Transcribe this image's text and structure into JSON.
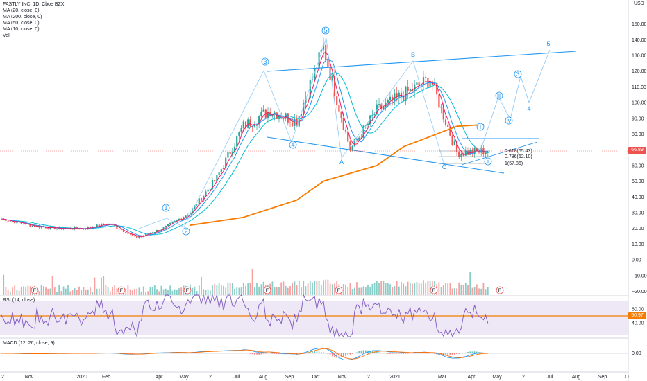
{
  "legend": {
    "symbol": "FASTLY INC, 1D, Cboe BZX",
    "ma20": "MA (20, close, 0)",
    "ma200": "MA (200, close, 0)",
    "ma50": "MA (50, close, 0)",
    "ma10": "MA (10, close, 0)",
    "vol": "Vol"
  },
  "rsi_label": "RSI (14, close)",
  "macd_label": "MACD (12, 26, close, 9)",
  "currency": "USD",
  "price_badge": "66.89",
  "rsi_badge": "50.97",
  "colors": {
    "up": "#26a69a",
    "down": "#ef5350",
    "ma20": "#e91e63",
    "ma200": "#f57c00",
    "ma50": "#00bcd4",
    "ma10": "#2196f3",
    "wave": "#2196f3",
    "rsi": "#7e57c2",
    "rsi_band": "#ede7f6",
    "macd": "#2196f3",
    "signal": "#ff6d00"
  },
  "chart_data": {
    "type": "line",
    "price_axis": [
      "150.00",
      "140.00",
      "130.00",
      "120.00",
      "110.00",
      "100.00",
      "90.00",
      "80.00",
      "70.00",
      "60.00",
      "50.00",
      "40.00",
      "30.00",
      "20.00",
      "10.00",
      "0.00",
      "−10.00",
      "−20.00"
    ],
    "rsi_axis": [
      "60.00",
      "40.00"
    ],
    "macd_axis": [
      "0.00"
    ],
    "time_axis": [
      "2",
      "Nov",
      "2020",
      "Feb",
      "Apr",
      "May",
      "2",
      "Jul",
      "Aug",
      "Sep",
      "Oct",
      "Nov",
      "2",
      "2021",
      "Mar",
      "Apr",
      "May",
      "2",
      "Jul",
      "Aug",
      "Sep",
      "O"
    ],
    "wave_labels": [
      "1",
      "2",
      "3",
      "4",
      "5",
      "A",
      "B",
      "C",
      "i",
      "ii",
      "iii",
      "iv",
      "3",
      "4",
      "5"
    ],
    "fib_levels": [
      "0.618(65.43)",
      "0.786(62.10)",
      "1(57.86)"
    ],
    "earnings_markers": [
      "E",
      "E",
      "E",
      "E",
      "E",
      "E",
      "E"
    ],
    "close_series": [
      {
        "t": "2019-10",
        "v": 26
      },
      {
        "t": "2019-11",
        "v": 22
      },
      {
        "t": "2019-12",
        "v": 20
      },
      {
        "t": "2020-01",
        "v": 20
      },
      {
        "t": "2020-02",
        "v": 23
      },
      {
        "t": "2020-03",
        "v": 14
      },
      {
        "t": "2020-04",
        "v": 20
      },
      {
        "t": "2020-05",
        "v": 30
      },
      {
        "t": "2020-06",
        "v": 52
      },
      {
        "t": "2020-07",
        "v": 85
      },
      {
        "t": "2020-08",
        "v": 95
      },
      {
        "t": "2020-09",
        "v": 88
      },
      {
        "t": "2020-10",
        "v": 135
      },
      {
        "t": "2020-11",
        "v": 70
      },
      {
        "t": "2020-12",
        "v": 95
      },
      {
        "t": "2021-01",
        "v": 105
      },
      {
        "t": "2021-02",
        "v": 115
      },
      {
        "t": "2021-03",
        "v": 68
      },
      {
        "t": "2021-04",
        "v": 69
      }
    ],
    "ma200_series": [
      {
        "t": "2020-05",
        "v": 22
      },
      {
        "t": "2020-07",
        "v": 27
      },
      {
        "t": "2020-09",
        "v": 38
      },
      {
        "t": "2020-10",
        "v": 50
      },
      {
        "t": "2020-12",
        "v": 60
      },
      {
        "t": "2021-01",
        "v": 72
      },
      {
        "t": "2021-03",
        "v": 85
      },
      {
        "t": "2021-04",
        "v": 86
      }
    ]
  }
}
